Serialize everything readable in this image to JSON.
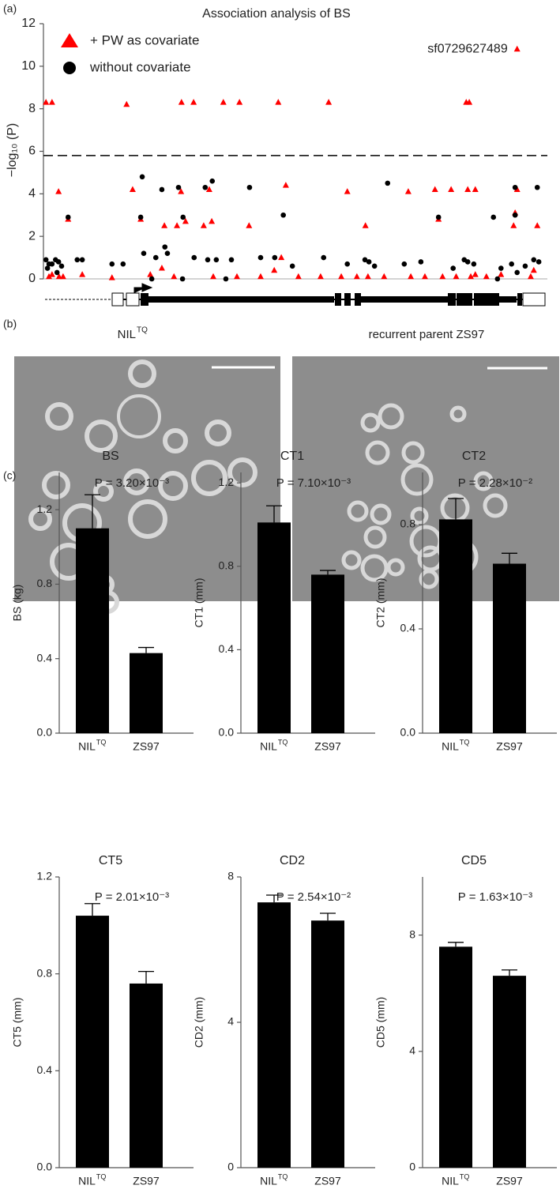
{
  "chart_data": [
    {
      "type": "scatter",
      "panel_label": "(a)",
      "title": "Association analysis of BS",
      "ylabel": "−log₁₀ (P)",
      "xlim": [
        0,
        100
      ],
      "ylim": [
        0,
        12
      ],
      "yticks": [
        0,
        2,
        4,
        6,
        8,
        10,
        12
      ],
      "threshold": 5.8,
      "annotation": "sf0729627489",
      "series": [
        {
          "name": "+ PW as covariate",
          "marker": "triangle",
          "color": "#ff0000",
          "x": [
            0.5,
            1.7,
            16.5,
            27.4,
            29.8,
            35.7,
            38.9,
            46.6,
            56.6,
            83.9,
            84.5,
            94.0,
            3.0,
            17.7,
            27.3,
            32.9,
            48.1,
            60.3,
            72.4,
            77.7,
            80.9,
            84.2,
            85.7,
            94.0,
            4.9,
            19.3,
            24.0,
            26.5,
            28.2,
            31.8,
            33.4,
            40.8,
            63.9,
            78.4,
            93.3,
            98.0,
            93.6,
            7.7,
            13.6,
            21.2,
            23.5,
            47.2,
            45.8,
            55.0,
            64.4,
            67.6,
            72.9,
            79.2,
            81.9,
            87.9,
            90.8,
            97.3,
            1.1,
            3.1,
            3.9,
            1.7,
            33.7,
            25.9,
            38.4,
            43.1,
            50.6,
            59.1,
            62.2,
            75.7,
            84.8,
            85.7,
            96.7
          ],
          "y": [
            8.3,
            8.3,
            8.2,
            8.3,
            8.3,
            8.3,
            8.3,
            8.3,
            8.3,
            8.3,
            8.3,
            10.8,
            4.1,
            4.2,
            4.1,
            4.2,
            4.4,
            4.1,
            4.1,
            4.2,
            4.2,
            4.2,
            4.2,
            4.2,
            2.8,
            2.8,
            2.5,
            2.5,
            2.7,
            2.5,
            2.7,
            2.5,
            2.5,
            2.8,
            2.5,
            2.5,
            3.1,
            0.2,
            0.05,
            0.2,
            0.5,
            1.0,
            0.4,
            0.1,
            0.1,
            0.1,
            0.1,
            0.1,
            0.1,
            0.1,
            0.2,
            0.4,
            0.1,
            0.1,
            0.1,
            0.2,
            0.1,
            0.1,
            0.1,
            0.1,
            0.1,
            0.1,
            0.1,
            0.1,
            0.1,
            0.2,
            0.1
          ]
        },
        {
          "name": "without covariate",
          "marker": "circle",
          "color": "#000000",
          "x": [
            0.5,
            1.1,
            1.7,
            2.4,
            3.0,
            3.6,
            2.7,
            0.8,
            6.7,
            7.7,
            4.9,
            13.6,
            15.8,
            19.9,
            22.3,
            24.1,
            24.6,
            19.6,
            23.5,
            26.8,
            32.1,
            33.5,
            40.9,
            47.6,
            68.3,
            78.4,
            89.3,
            93.6,
            93.6,
            98.0,
            19.3,
            27.7,
            29.9,
            32.6,
            34.3,
            37.3,
            43.1,
            45.9,
            49.4,
            55.6,
            60.3,
            63.8,
            64.6,
            65.7,
            71.6,
            74.9,
            81.3,
            83.5,
            84.2,
            85.4,
            90.8,
            92.9,
            94.0,
            95.6,
            97.3,
            98.3,
            27.6,
            36.2,
            21.5,
            90.1
          ],
          "y": [
            0.9,
            0.7,
            0.7,
            0.9,
            0.8,
            0.6,
            0.3,
            0.5,
            0.9,
            0.9,
            2.9,
            0.7,
            0.7,
            1.2,
            1.0,
            1.5,
            1.2,
            4.8,
            4.2,
            4.3,
            4.3,
            4.6,
            4.3,
            3.0,
            4.5,
            2.9,
            2.9,
            3.0,
            4.3,
            4.3,
            2.9,
            2.9,
            1.0,
            0.9,
            0.9,
            0.9,
            1.0,
            1.0,
            0.6,
            1.0,
            0.7,
            0.9,
            0.8,
            0.6,
            0.7,
            0.8,
            0.5,
            0.9,
            0.8,
            0.7,
            0.5,
            0.7,
            0.3,
            0.6,
            0.9,
            0.8,
            0,
            0,
            0,
            0
          ]
        }
      ]
    },
    {
      "type": "bar",
      "panel_label": "(c)",
      "title": "BS",
      "annotation": "P = 3.20×10⁻³",
      "ylabel": "BS (kg)",
      "categories": [
        "NIL",
        "ZS97"
      ],
      "category_superscripts": [
        "TQ",
        null
      ],
      "values": [
        1.1,
        0.43
      ],
      "errors": [
        0.18,
        0.03
      ],
      "color": "#000000",
      "ylim": [
        0,
        1.4
      ],
      "yticks": [
        {
          "value": 0,
          "label": "0.0"
        },
        0.4,
        0.8,
        1.2
      ]
    },
    {
      "type": "bar",
      "title": "CT1",
      "annotation": "P = 7.10×10⁻³",
      "ylabel": "CT1 (mm)",
      "categories": [
        "NIL",
        "ZS97"
      ],
      "category_superscripts": [
        "TQ",
        null
      ],
      "values": [
        1.01,
        0.76
      ],
      "errors": [
        0.08,
        0.02
      ],
      "color": "#000000",
      "ylim": [
        0,
        1.25
      ],
      "yticks": [
        {
          "value": 0,
          "label": "0.0"
        },
        0.4,
        0.8,
        1.2
      ]
    },
    {
      "type": "bar",
      "title": "CT2",
      "annotation": "P = 2.28×10⁻²",
      "ylabel": "CT2 (mm)",
      "categories": [
        "NIL",
        "ZS97"
      ],
      "category_superscripts": [
        "TQ",
        null
      ],
      "values": [
        0.82,
        0.65
      ],
      "errors": [
        0.08,
        0.04
      ],
      "color": "#000000",
      "ylim": [
        0,
        1.0
      ],
      "yticks": [
        {
          "value": 0,
          "label": "0.0"
        },
        0.4,
        0.8
      ]
    },
    {
      "type": "bar",
      "title": "CT5",
      "annotation": "P = 2.01×10⁻³",
      "ylabel": "CT5 (mm)",
      "categories": [
        "NIL",
        "ZS97"
      ],
      "category_superscripts": [
        "TQ",
        null
      ],
      "values": [
        1.04,
        0.76
      ],
      "errors": [
        0.05,
        0.05
      ],
      "color": "#000000",
      "ylim": [
        0,
        1.2
      ],
      "yticks": [
        {
          "value": 0,
          "label": "0.0"
        },
        0.4,
        0.8,
        1.2
      ]
    },
    {
      "type": "bar",
      "title": "CD2",
      "annotation": "P = 2.54×10⁻²",
      "ylabel": "CD2 (mm)",
      "categories": [
        "NIL",
        "ZS97"
      ],
      "category_superscripts": [
        "TQ",
        null
      ],
      "values": [
        7.3,
        6.8
      ],
      "errors": [
        0.2,
        0.2
      ],
      "color": "#000000",
      "ylim": [
        0,
        8
      ],
      "yticks": [
        0,
        4,
        8
      ]
    },
    {
      "type": "bar",
      "title": "CD5",
      "annotation": "P = 1.63×10⁻³",
      "ylabel": "CD5 (mm)",
      "categories": [
        "NIL",
        "ZS97"
      ],
      "category_superscripts": [
        "TQ",
        null
      ],
      "values": [
        7.6,
        6.6
      ],
      "errors": [
        0.15,
        0.2
      ],
      "color": "#000000",
      "ylim": [
        0,
        10
      ],
      "yticks": [
        0,
        4,
        8
      ]
    }
  ],
  "figure_b": {
    "panel_label": "(b)",
    "images": [
      {
        "title": "NIL",
        "title_superscript": "TQ"
      },
      {
        "title": "recurrent parent ZS97"
      }
    ]
  }
}
